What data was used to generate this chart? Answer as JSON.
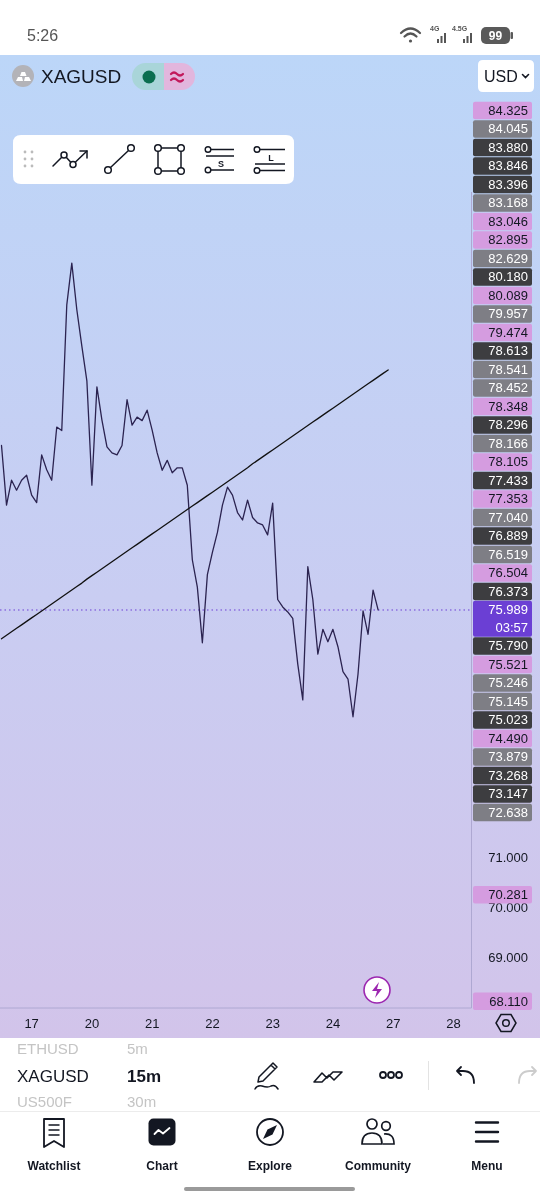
{
  "chart_data": {
    "type": "line",
    "title": "XAGUSD",
    "categories": [
      null,
      null,
      null,
      null,
      null,
      null,
      "17",
      null,
      null,
      null,
      null,
      null,
      null,
      null,
      null,
      null,
      null,
      null,
      "20",
      null,
      null,
      null,
      null,
      null,
      null,
      null,
      null,
      null,
      null,
      null,
      "21",
      null,
      null,
      null,
      null,
      null,
      null,
      null,
      null,
      null,
      null,
      null,
      "22",
      null,
      null,
      null,
      null,
      null,
      null,
      null,
      null,
      null,
      null,
      null,
      "23",
      null,
      null,
      null,
      null,
      null,
      null,
      null,
      null,
      null,
      null,
      null,
      "24",
      null,
      null,
      null,
      null,
      null,
      null,
      null,
      null,
      null,
      null,
      null,
      "27",
      null,
      null,
      null,
      null,
      null,
      null,
      null,
      null,
      null,
      null,
      null,
      "28",
      null,
      null,
      null
    ],
    "ylim": [
      67.98,
      84.4
    ],
    "yticks": [
      {
        "value": 69,
        "label": "69.000"
      },
      {
        "value": 70,
        "label": "70.000"
      },
      {
        "value": 71,
        "label": "71.000"
      }
    ],
    "series": [
      {
        "color": "#2b2350",
        "values": [
          79.3,
          78.1,
          78.6,
          78.4,
          78.6,
          78.7,
          78.3,
          78.15,
          79.11,
          78.81,
          78.6,
          79.67,
          79.6,
          82.13,
          82.97,
          82.03,
          81.3,
          80.6,
          78.5,
          80.48,
          79.81,
          79.27,
          79.15,
          79.11,
          79.3,
          80.22,
          79.71,
          79.87,
          79.8,
          80.01,
          79.61,
          79.15,
          78.8,
          79.0,
          78.75,
          78.85,
          78.85,
          78.5,
          77.0,
          76.45,
          75.33,
          76.7,
          77.15,
          77.55,
          78.1,
          78.46,
          78.3,
          77.95,
          77.8,
          78.2,
          77.85,
          77.74,
          77.7,
          77.5,
          78.14,
          76.2,
          76.05,
          75.95,
          75.82,
          74.9,
          74.18,
          76.86,
          76.2,
          75.1,
          75.6,
          75.35,
          75.6,
          75.25,
          74.75,
          74.6,
          73.84,
          74.7,
          75.97,
          75.5,
          76.39,
          75.99,
          null,
          null,
          null,
          null,
          null,
          null,
          null,
          null,
          null,
          null,
          null,
          null,
          null,
          null,
          null,
          null,
          null,
          null
        ]
      },
      {
        "type": "line",
        "color": "#111111",
        "values": [
          75.41,
          75.48,
          75.55,
          75.62,
          75.69,
          75.76,
          75.83,
          75.9,
          75.97,
          76.04,
          76.11,
          76.18,
          76.25,
          76.32,
          76.39,
          76.46,
          76.53,
          76.61,
          76.68,
          76.75,
          76.82,
          76.89,
          76.96,
          77.03,
          77.1,
          77.17,
          77.24,
          77.31,
          77.38,
          77.45,
          77.52,
          77.59,
          77.66,
          77.73,
          77.8,
          77.87,
          77.94,
          78.01,
          78.08,
          78.15,
          78.22,
          78.29,
          78.36,
          78.43,
          78.5,
          78.57,
          78.64,
          78.71,
          78.78,
          78.85,
          78.93,
          79.0,
          79.07,
          79.14,
          79.21,
          79.28,
          79.35,
          79.42,
          79.49,
          79.56,
          79.63,
          79.7,
          79.77,
          79.84,
          79.91,
          79.98,
          80.05,
          80.12,
          80.19,
          80.26,
          80.33,
          80.4,
          80.47,
          80.54,
          80.61,
          80.68,
          80.75,
          80.82,
          null,
          null,
          null,
          null,
          null,
          null,
          null,
          null,
          null,
          null,
          null,
          null,
          null,
          null,
          null,
          null
        ]
      }
    ],
    "ref_lines": [
      {
        "axis": "y",
        "value": 75.989,
        "label": "75.989",
        "color": "#6b3fd4",
        "line_style": "dotted"
      }
    ],
    "annotations": [
      "03:57",
      "USD",
      "5:26",
      "4G",
      "4.5G",
      "99",
      "ETHUSD",
      "5m",
      "XAGUSD",
      "15m",
      "US500F",
      "30m",
      "Watchlist",
      "Chart",
      "Explore",
      "Community",
      "Menu",
      "S",
      "L",
      "84.325",
      "84.045",
      "83.880",
      "83.846",
      "83.396",
      "83.168",
      "83.046",
      "82.895",
      "82.629",
      "80.180",
      "80.089",
      "79.957",
      "79.474",
      "78.613",
      "78.541",
      "78.452",
      "78.348",
      "78.296",
      "78.166",
      "78.105",
      "77.433",
      "77.353",
      "77.040",
      "76.889",
      "76.519",
      "76.504",
      "76.373",
      "75.790",
      "75.521",
      "75.246",
      "75.145",
      "75.023",
      "74.490",
      "73.879",
      "73.268",
      "73.147",
      "72.638",
      "70.281",
      "68.110"
    ]
  }
}
